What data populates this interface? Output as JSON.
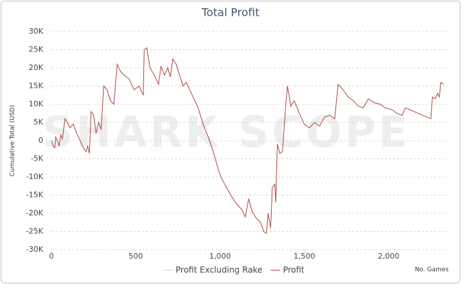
{
  "chart_data": {
    "type": "line",
    "title": "Total Profit",
    "watermark": "SHARK SCOPE",
    "y_label": "Cumulative Total (USD)",
    "x_label": "No. Games",
    "grid": true,
    "xlim": [
      0,
      2360
    ],
    "xticks": [
      0,
      500,
      {
        "value": 1000,
        "label": "1,000"
      },
      {
        "value": 1500,
        "label": "1,500"
      },
      {
        "value": 2000,
        "label": "2,000"
      }
    ],
    "ylim": [
      -30000,
      30000
    ],
    "yticks": [
      {
        "value": -30000,
        "label": "-30K"
      },
      {
        "value": -25000,
        "label": "-25K"
      },
      {
        "value": -20000,
        "label": "-20K"
      },
      {
        "value": -15000,
        "label": "-15K"
      },
      {
        "value": -10000,
        "label": "-10K"
      },
      {
        "value": -5000,
        "label": "-5K"
      },
      0,
      {
        "value": 5000,
        "label": "5K"
      },
      {
        "value": 10000,
        "label": "10K"
      },
      {
        "value": 15000,
        "label": "15K"
      },
      {
        "value": 20000,
        "label": "20K"
      },
      {
        "value": 25000,
        "label": "25K"
      },
      {
        "value": 30000,
        "label": "30K"
      }
    ],
    "x": [
      0,
      10,
      20,
      25,
      35,
      45,
      55,
      65,
      80,
      95,
      110,
      130,
      150,
      170,
      190,
      205,
      215,
      225,
      235,
      250,
      265,
      280,
      295,
      310,
      330,
      350,
      370,
      390,
      410,
      430,
      460,
      490,
      520,
      545,
      550,
      565,
      585,
      610,
      635,
      650,
      670,
      690,
      705,
      720,
      740,
      760,
      780,
      800,
      830,
      870,
      900,
      930,
      960,
      990,
      1010,
      1040,
      1070,
      1100,
      1130,
      1150,
      1170,
      1190,
      1210,
      1240,
      1260,
      1275,
      1285,
      1300,
      1310,
      1325,
      1330,
      1340,
      1355,
      1370,
      1390,
      1400,
      1420,
      1440,
      1470,
      1500,
      1530,
      1560,
      1590,
      1620,
      1650,
      1680,
      1700,
      1730,
      1760,
      1790,
      1820,
      1850,
      1880,
      1910,
      1950,
      1980,
      2020,
      2050,
      2080,
      2100,
      2150,
      2200,
      2250,
      2260,
      2275,
      2290,
      2300,
      2310,
      2325
    ],
    "series": [
      {
        "name": "Profit Excluding Rake",
        "color": "#cccccc",
        "visible": false
      },
      {
        "name": "Profit",
        "color": "#aa4643",
        "visible": true,
        "values": [
          0,
          -1500,
          -2000,
          1000,
          0,
          -1500,
          1500,
          500,
          6000,
          5000,
          3500,
          4500,
          2000,
          0,
          -2000,
          -3000,
          -1500,
          -3500,
          8000,
          7000,
          2000,
          5000,
          3000,
          15000,
          14000,
          11000,
          10000,
          21000,
          19000,
          18000,
          17000,
          14000,
          15000,
          12500,
          25000,
          25500,
          20000,
          18000,
          15500,
          20500,
          18000,
          20000,
          17500,
          22500,
          21000,
          18000,
          15000,
          16000,
          13000,
          9000,
          4500,
          1000,
          -3000,
          -8000,
          -10500,
          -13000,
          -15500,
          -17500,
          -19000,
          -21000,
          -16000,
          -19500,
          -21000,
          -22500,
          -25000,
          -25500,
          -20000,
          -24000,
          -13000,
          -12000,
          -17000,
          -1000,
          -3500,
          -3000,
          10000,
          15000,
          9500,
          11000,
          7500,
          4500,
          3500,
          5000,
          4000,
          6500,
          7000,
          6000,
          15500,
          14000,
          12000,
          11000,
          9500,
          9000,
          11500,
          10500,
          10000,
          9000,
          8500,
          7500,
          7000,
          9000,
          8000,
          7000,
          6000,
          12000,
          11500,
          13000,
          12000,
          16000,
          15500
        ]
      }
    ]
  }
}
